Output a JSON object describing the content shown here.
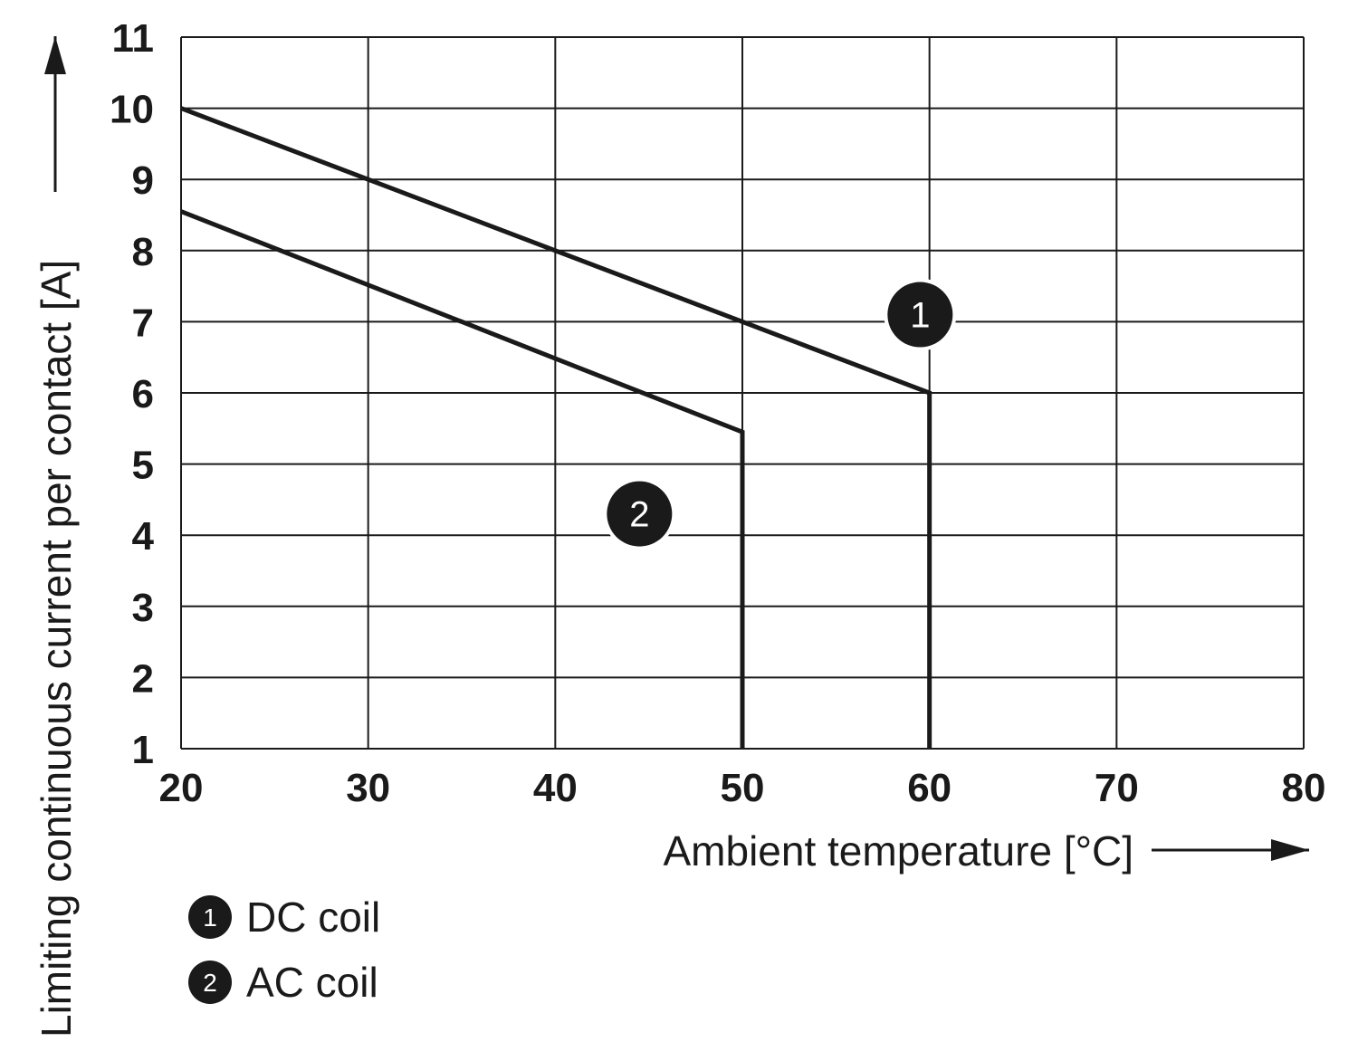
{
  "chart_data": {
    "type": "line",
    "xlabel": "Ambient temperature [°C]",
    "ylabel": "Limiting continuous current per contact [A]",
    "xlim": [
      20,
      80
    ],
    "ylim": [
      1,
      11
    ],
    "xticks": [
      "20",
      "30",
      "40",
      "50",
      "60",
      "70",
      "80"
    ],
    "yticks": [
      "1",
      "2",
      "3",
      "4",
      "5",
      "6",
      "7",
      "8",
      "9",
      "10",
      "11"
    ],
    "grid": true,
    "series": [
      {
        "marker": "1",
        "name": "DC coil",
        "x": [
          20,
          60,
          60
        ],
        "y": [
          10,
          6,
          1
        ]
      },
      {
        "marker": "2",
        "name": "AC coil",
        "x": [
          20,
          50,
          50
        ],
        "y": [
          8.55,
          5.45,
          1
        ]
      }
    ],
    "annotations": [
      {
        "label": "1",
        "x": 59.5,
        "y": 7.1
      },
      {
        "label": "2",
        "x": 44.5,
        "y": 4.3
      }
    ],
    "legend": {
      "placement": "bottom-left",
      "items": [
        {
          "marker": "1",
          "label": "DC coil"
        },
        {
          "marker": "2",
          "label": "AC coil"
        }
      ]
    },
    "colors": {
      "line": "#1a1a1a",
      "grid": "#1a1a1a",
      "badge": "#1a1a1a"
    }
  }
}
